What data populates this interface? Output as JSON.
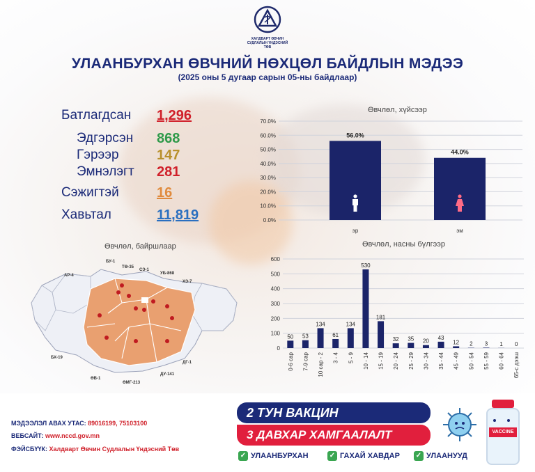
{
  "header": {
    "logo_text": "ХАЛДВАРТ ӨВЧИН СУДЛАЛЫН ҮНДЭСНИЙ ТӨВ",
    "title": "УЛААНБУРХАН ӨВЧНИЙ НӨХЦӨЛ БАЙДЛЫН МЭДЭЭ",
    "subtitle": "(2025 оны 5 дугаар сарын 05-ны байдлаар)"
  },
  "stats": {
    "confirmed_label": "Батлагдсан",
    "confirmed_value": "1,296",
    "recovered_label": "Эдгэрсэн",
    "recovered_value": "868",
    "home_label": "Гэрээр",
    "home_value": "147",
    "hospital_label": "Эмнэлэгт",
    "hospital_value": "281",
    "suspected_label": "Сэжигтэй",
    "suspected_value": "16",
    "outbreak_label": "Хавьтал",
    "outbreak_value": "11,819"
  },
  "map": {
    "title": "Өвчлөл, байршлаар",
    "labels": [
      "БУ-1",
      "ТӨ-35",
      "СЭ-1",
      "УБ-868",
      "ХЭ-7",
      "АР-4",
      "БХ-19",
      "ӨВ-1",
      "ӨМГ-213",
      "ДУ-141",
      "ДГ-1"
    ]
  },
  "chart_data": [
    {
      "type": "bar",
      "title": "Өвчлөл, хүйсээр",
      "categories": [
        "эр",
        "эм"
      ],
      "values": [
        56.0,
        44.0
      ],
      "value_labels": [
        "56.0%",
        "44.0%"
      ],
      "yticks": [
        "0.0%",
        "10.0%",
        "20.0%",
        "30.0%",
        "40.0%",
        "50.0%",
        "60.0%",
        "70.0%"
      ],
      "ylim": [
        0,
        70
      ],
      "color": "#1b2469",
      "grid": true
    },
    {
      "type": "bar",
      "title": "Өвчлөл, насны бүлгээр",
      "categories": [
        "0-6 сар",
        "7-9 сар",
        "10 сар - 2",
        "3 - 4",
        "5 - 9",
        "10 - 14",
        "15 - 19",
        "20 - 24",
        "25 - 29",
        "30 - 34",
        "35 - 44",
        "45 - 49",
        "50 - 54",
        "55 - 59",
        "60 - 64",
        "65-с дээш"
      ],
      "values": [
        50,
        53,
        134,
        61,
        134,
        530,
        181,
        32,
        35,
        20,
        43,
        12,
        2,
        3,
        1,
        0
      ],
      "yticks": [
        "0",
        "100",
        "200",
        "300",
        "400",
        "500",
        "600"
      ],
      "ylim": [
        0,
        600
      ],
      "color": "#1b2469",
      "grid": true
    }
  ],
  "footer": {
    "phone_label": "МЭДЭЭЛЭЛ АВАХ УТАС:",
    "phone_value": "89016199,  75103100",
    "web_label": "ВЕБСАЙТ:",
    "web_value": "www.nccd.gov.mn",
    "fb_label": "ФЭЙСБҮҮК:",
    "fb_value": "Халдварт Өвчин Судлалын Үндэсний Төв",
    "banner_line1": "2 ТУН ВАКЦИН",
    "banner_line2": "3 ДАВХАР ХАМГААЛАЛТ",
    "checks": [
      "УЛААНБУРХАН",
      "ГАХАЙ ХАВДАР",
      "УЛААНУУД"
    ],
    "vaccine_label": "VACCINE"
  },
  "colors": {
    "navy": "#1b2a78",
    "red": "#e11f3d",
    "green": "#2f9a4a",
    "gold": "#b8902b",
    "orange": "#e08a3c",
    "blue": "#2a6fc0"
  }
}
